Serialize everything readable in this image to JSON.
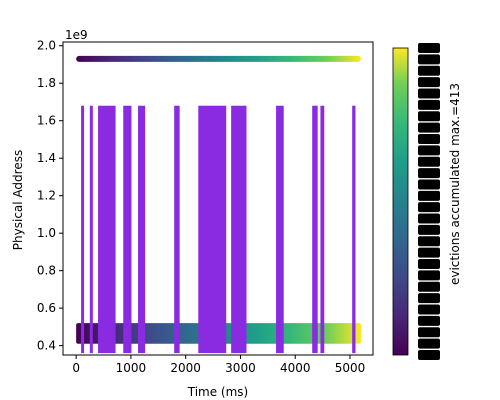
{
  "chart_data": {
    "type": "scatter",
    "title": "",
    "xlabel": "Time (ms)",
    "ylabel": "Physical Address",
    "y_offset_label": "1e9",
    "xlim": [
      -240,
      5420
    ],
    "ylim": [
      0.35,
      2.02
    ],
    "x_ticks": [
      0,
      1000,
      2000,
      3000,
      4000,
      5000
    ],
    "y_ticks": [
      0.4,
      0.6,
      0.8,
      1.0,
      1.2,
      1.4,
      1.6,
      1.8,
      2.0
    ],
    "y_tick_labels": [
      "0.4",
      "0.6",
      "0.8",
      "1.0",
      "1.2",
      "1.4",
      "1.6",
      "1.8",
      "2.0"
    ],
    "grid": false,
    "series": [
      {
        "points_at_y": 1.93,
        "x_range": [
          0,
          5200
        ],
        "colormap": "viridis"
      },
      {
        "band_y": [
          0.41,
          0.52
        ],
        "x_range": [
          0,
          5200
        ],
        "colormap": "viridis"
      }
    ],
    "spikes": {
      "color": "#8a2be2",
      "top": 1.68,
      "bottom": 0.36,
      "x_intervals": [
        [
          90,
          140
        ],
        [
          250,
          290
        ],
        [
          400,
          720
        ],
        [
          860,
          1010
        ],
        [
          1130,
          1260
        ],
        [
          1790,
          1890
        ],
        [
          2230,
          2740
        ],
        [
          2830,
          3110
        ],
        [
          3650,
          3790
        ],
        [
          4310,
          4410
        ],
        [
          4460,
          4530
        ],
        [
          5040,
          5100
        ]
      ]
    },
    "colorbar": {
      "label": "evictions accumulated max.=413",
      "colormap": "viridis",
      "max": 413
    }
  }
}
